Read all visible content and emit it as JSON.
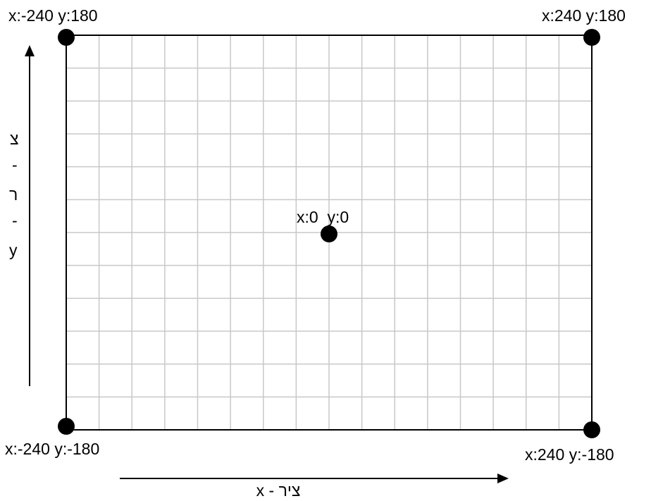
{
  "grid": {
    "columns": 16,
    "rows": 12
  },
  "points": [
    {
      "id": "top-left",
      "label": "x:-240 y:180"
    },
    {
      "id": "top-right",
      "label": "x:240 y:180"
    },
    {
      "id": "center",
      "label": "x:0  y:0"
    },
    {
      "id": "bottom-left",
      "label": "x:-240 y:-180"
    },
    {
      "id": "bottom-right",
      "label": "x:240 y:-180"
    }
  ],
  "axes": {
    "x_label": "ציר - x",
    "y_label_chars": [
      "צ",
      "-",
      "ר",
      "-",
      "y"
    ]
  },
  "colors": {
    "grid_line": "#c8c8c8",
    "border": "#000000",
    "dot": "#000000"
  }
}
